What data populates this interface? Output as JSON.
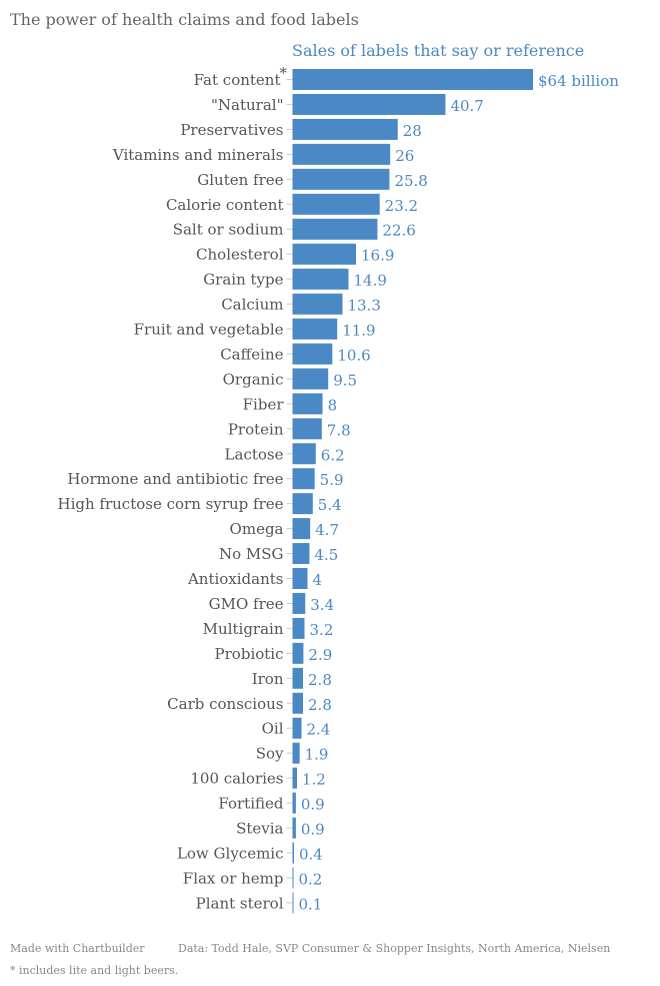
{
  "chart_data": {
    "type": "bar",
    "orientation": "horizontal",
    "title": "The power of health claims and food labels",
    "subtitle": "Sales of labels that say or reference",
    "categories": [
      "Fat content",
      "\"Natural\"",
      "Preservatives",
      "Vitamins and minerals",
      "Gluten free",
      "Calorie content",
      "Salt or sodium",
      "Cholesterol",
      "Grain type",
      "Calcium",
      "Fruit and vegetable",
      "Caffeine",
      "Organic",
      "Fiber",
      "Protein",
      "Lactose",
      "Hormone and antibiotic free",
      "High fructose corn syrup free",
      "Omega",
      "No MSG",
      "Antioxidants",
      "GMO free",
      "Multigrain",
      "Probiotic",
      "Iron",
      "Carb conscious",
      "Oil",
      "Soy",
      "100 calories",
      "Fortified",
      "Stevia",
      "Low Glycemic",
      "Flax or hemp",
      "Plant sterol"
    ],
    "values": [
      64,
      40.7,
      28,
      26,
      25.8,
      23.2,
      22.6,
      16.9,
      14.9,
      13.3,
      11.9,
      10.6,
      9.5,
      8,
      7.8,
      6.2,
      5.9,
      5.4,
      4.7,
      4.5,
      4,
      3.4,
      3.2,
      2.9,
      2.8,
      2.8,
      2.4,
      1.9,
      1.2,
      0.9,
      0.9,
      0.4,
      0.2,
      0.1
    ],
    "first_value_label": "$64 billion",
    "footnote_marker": "*",
    "xlim": [
      0,
      64
    ],
    "grid": false,
    "color": "#4a89c5"
  },
  "footer": {
    "credit": "Made with Chartbuilder",
    "source": "Data: Todd Hale, SVP Consumer & Shopper Insights, North America, Nielsen",
    "note": "* includes lite and light beers."
  }
}
